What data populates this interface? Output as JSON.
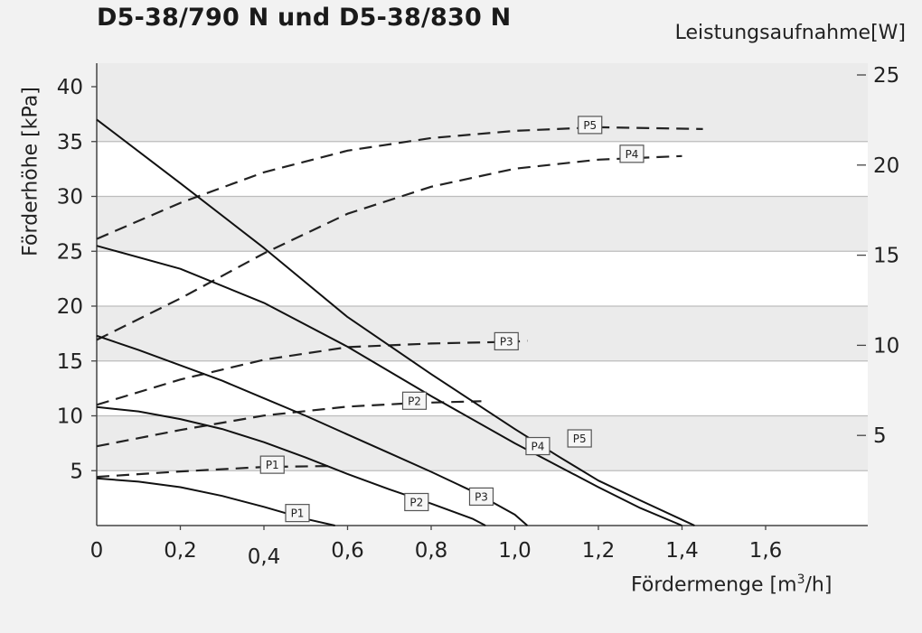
{
  "chart_data": {
    "type": "line",
    "title": "D5-38/790 N und D5-38/830 N",
    "xlabel": "Fördermenge [m",
    "xlabel_sup": "3",
    "xlabel_tail": "/h]",
    "ylabel": "Förderhöhe [kPa]",
    "y2label": "Leistungsaufnahme[W]",
    "xlim": [
      0,
      1.6
    ],
    "ylim": [
      0,
      40
    ],
    "y2lim": [
      0,
      25
    ],
    "x_ticks": [
      "0",
      "0,2",
      "0,4",
      "0,6",
      "0,8",
      "1,0",
      "1,2",
      "1,4",
      "1,6"
    ],
    "y_ticks": [
      "40",
      "35",
      "30",
      "25",
      "20",
      "15",
      "10",
      "5"
    ],
    "y2_ticks": [
      "25",
      "20",
      "15",
      "10",
      "5"
    ],
    "grid": "horizontal bands",
    "head_series": [
      {
        "name": "P1",
        "x": [
          0,
          0.1,
          0.2,
          0.3,
          0.4,
          0.5,
          0.57
        ],
        "y": [
          4.3,
          4.0,
          3.5,
          2.7,
          1.7,
          0.6,
          0
        ]
      },
      {
        "name": "P2",
        "x": [
          0,
          0.1,
          0.2,
          0.3,
          0.4,
          0.5,
          0.6,
          0.7,
          0.8,
          0.9,
          0.93
        ],
        "y": [
          10.8,
          10.4,
          9.7,
          8.8,
          7.6,
          6.2,
          4.7,
          3.3,
          2.0,
          0.6,
          0
        ]
      },
      {
        "name": "P3",
        "x": [
          0,
          0.1,
          0.2,
          0.3,
          0.4,
          0.5,
          0.6,
          0.7,
          0.8,
          0.9,
          1.0,
          1.03
        ],
        "y": [
          17.3,
          16.0,
          14.6,
          13.2,
          11.6,
          10.0,
          8.3,
          6.6,
          4.9,
          3.1,
          1.0,
          0
        ]
      },
      {
        "name": "P4",
        "x": [
          0,
          0.2,
          0.4,
          0.6,
          0.8,
          1.0,
          1.1,
          1.2,
          1.3,
          1.4
        ],
        "y": [
          25.5,
          23.4,
          20.3,
          16.3,
          11.8,
          7.5,
          5.5,
          3.5,
          1.6,
          0
        ]
      },
      {
        "name": "P5",
        "x": [
          0,
          0.2,
          0.4,
          0.6,
          0.8,
          1.0,
          1.1,
          1.2,
          1.3,
          1.43
        ],
        "y": [
          37.0,
          31.2,
          25.3,
          19.0,
          13.8,
          8.8,
          6.4,
          4.1,
          2.3,
          0
        ]
      }
    ],
    "power_series": [
      {
        "name": "P1",
        "x": [
          0,
          0.2,
          0.4,
          0.56
        ],
        "y": [
          2.7,
          3.0,
          3.25,
          3.3
        ]
      },
      {
        "name": "P2",
        "x": [
          0,
          0.2,
          0.4,
          0.6,
          0.76,
          0.92
        ],
        "y": [
          4.4,
          5.3,
          6.1,
          6.6,
          6.8,
          6.9
        ]
      },
      {
        "name": "P3",
        "x": [
          0,
          0.2,
          0.4,
          0.6,
          0.8,
          1.0,
          1.03
        ],
        "y": [
          6.7,
          8.1,
          9.2,
          9.9,
          10.1,
          10.2,
          10.25
        ]
      },
      {
        "name": "P4",
        "x": [
          0,
          0.2,
          0.4,
          0.6,
          0.8,
          1.0,
          1.2,
          1.4
        ],
        "y": [
          10.3,
          12.6,
          15.1,
          17.3,
          18.8,
          19.8,
          20.3,
          20.5
        ]
      },
      {
        "name": "P5",
        "x": [
          0,
          0.2,
          0.4,
          0.6,
          0.8,
          1.0,
          1.2,
          1.45
        ],
        "y": [
          15.9,
          17.9,
          19.6,
          20.8,
          21.5,
          21.9,
          22.1,
          22.0
        ]
      }
    ],
    "head_labels": [
      {
        "name": "P1",
        "x": 0.48,
        "y": 1.1
      },
      {
        "name": "P2",
        "x": 0.765,
        "y": 2.1
      },
      {
        "name": "P3",
        "x": 0.92,
        "y": 2.6
      },
      {
        "name": "P4",
        "x": 1.055,
        "y": 7.2
      },
      {
        "name": "P5",
        "x": 1.155,
        "y": 7.9
      }
    ],
    "power_labels": [
      {
        "name": "P1",
        "x": 0.42,
        "y": 3.35
      },
      {
        "name": "P2",
        "x": 0.76,
        "y": 6.9
      },
      {
        "name": "P3",
        "x": 0.98,
        "y": 10.2
      },
      {
        "name": "P4",
        "x": 1.28,
        "y": 20.6
      },
      {
        "name": "P5",
        "x": 1.18,
        "y": 22.2
      }
    ]
  }
}
